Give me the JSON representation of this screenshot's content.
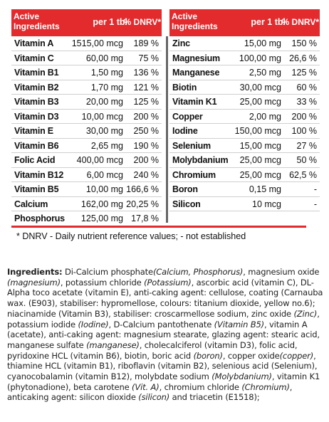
{
  "table": {
    "header": {
      "col1": "Active Ingredients",
      "col2": "per 1 tbl",
      "col3": "% DNRV*"
    },
    "left": [
      {
        "name": "Vitamin A",
        "amount": "1515,00 mcg",
        "pct": "189 %"
      },
      {
        "name": "Vitamin C",
        "amount": "60,00 mg",
        "pct": "75 %"
      },
      {
        "name": "Vitamin B1",
        "amount": "1,50 mg",
        "pct": "136 %"
      },
      {
        "name": "Vitamin B2",
        "amount": "1,70 mg",
        "pct": "121 %"
      },
      {
        "name": "Vitamin B3",
        "amount": "20,00 mg",
        "pct": "125 %"
      },
      {
        "name": "Vitamin D3",
        "amount": "10,00 mcg",
        "pct": "200 %"
      },
      {
        "name": "Vitamin E",
        "amount": "30,00 mg",
        "pct": "250 %"
      },
      {
        "name": "Vitamin B6",
        "amount": "2,65 mg",
        "pct": "190 %"
      },
      {
        "name": "Folic Acid",
        "amount": "400,00 mcg",
        "pct": "200 %"
      },
      {
        "name": "Vitamin B12",
        "amount": "6,00 mcg",
        "pct": "240 %"
      },
      {
        "name": "Vitamin B5",
        "amount": "10,00 mg",
        "pct": "166,6 %"
      },
      {
        "name": "Calcium",
        "amount": "162,00 mg",
        "pct": "20,25 %"
      },
      {
        "name": "Phosphorus",
        "amount": "125,00 mg",
        "pct": "17,8 %"
      }
    ],
    "right": [
      {
        "name": "Zinc",
        "amount": "15,00 mg",
        "pct": "150 %"
      },
      {
        "name": "Magnesium",
        "amount": "100,00 mg",
        "pct": "26,6 %"
      },
      {
        "name": "Manganese",
        "amount": "2,50 mg",
        "pct": "125 %"
      },
      {
        "name": "Biotin",
        "amount": "30,00 mcg",
        "pct": "60 %"
      },
      {
        "name": "Vitamin K1",
        "amount": "25,00 mcg",
        "pct": "33 %"
      },
      {
        "name": "Copper",
        "amount": "2,00 mg",
        "pct": "200 %"
      },
      {
        "name": "Iodine",
        "amount": "150,00 mcg",
        "pct": "100 %"
      },
      {
        "name": "Selenium",
        "amount": "15,00 mcg",
        "pct": "27 %"
      },
      {
        "name": "Molybdanium",
        "amount": "25,00 mcg",
        "pct": "50 %"
      },
      {
        "name": "Chromium",
        "amount": "25,00 mcg",
        "pct": "62,5 %"
      },
      {
        "name": "Boron",
        "amount": "0,15 mg",
        "pct": "-"
      },
      {
        "name": "Silicon",
        "amount": "10 mcg",
        "pct": "-"
      }
    ],
    "footnote": "* DNRV - Daily nutrient reference values;  - not established"
  },
  "ingredients": {
    "label": "Ingredients:",
    "parts": [
      {
        "t": " Di-Calcium phosphate"
      },
      {
        "t": "(Calcium, Phosphorus)",
        "i": true
      },
      {
        "t": ", magnesium oxide "
      },
      {
        "t": "(magnesium)",
        "i": true
      },
      {
        "t": ", potassium chloride "
      },
      {
        "t": "(Potassium)",
        "i": true
      },
      {
        "t": ", ascorbic acid (vitamin C), DL-Alpha toco acetate (vitamin E),  anti-caking agent: cellulose, coating (Carnauba wax. (E903), stabiliser: hypromellose, colours: titanium dioxide, yellow no.6);  niacinamide (Vitamin B3), stabiliser: croscarmellose sodium, zinc oxide "
      },
      {
        "t": "(Zinc)",
        "i": true
      },
      {
        "t": ", potassium iodide "
      },
      {
        "t": "(Iodine)",
        "i": true
      },
      {
        "t": ", D-Calcium pantothenate "
      },
      {
        "t": "(Vitamin B5)",
        "i": true
      },
      {
        "t": ", vitamin A (acetate), anti-caking agent: magnesium stearate, glazing agent: stearic acid, manganese sulfate "
      },
      {
        "t": "(manganese)",
        "i": true
      },
      {
        "t": ", cholecalciferol (vitamin D3), folic acid, pyridoxine HCL (vitamin B6), biotin, boric acid "
      },
      {
        "t": "(boron)",
        "i": true
      },
      {
        "t": ", copper oxide"
      },
      {
        "t": "(copper)",
        "i": true
      },
      {
        "t": ", thiamine HCL (vitamin B1), riboflavin (vitamin B2), selenious acid (Selenium), cyanocobalamin (vitamin B12), molybdate sodium "
      },
      {
        "t": "(Molybdanium)",
        "i": true
      },
      {
        "t": ", vitamin K1 (phytonadione), beta carotene "
      },
      {
        "t": "(Vit. A)",
        "i": true
      },
      {
        "t": ", chromium chloride "
      },
      {
        "t": "(Chromium)",
        "i": true
      },
      {
        "t": ", anticaking agent: silicon dioxide "
      },
      {
        "t": "(silicon)",
        "i": true
      },
      {
        "t": " and triacetin (E1518);"
      }
    ]
  },
  "colors": {
    "accent": "#e32b2e",
    "divider": "#666666"
  }
}
